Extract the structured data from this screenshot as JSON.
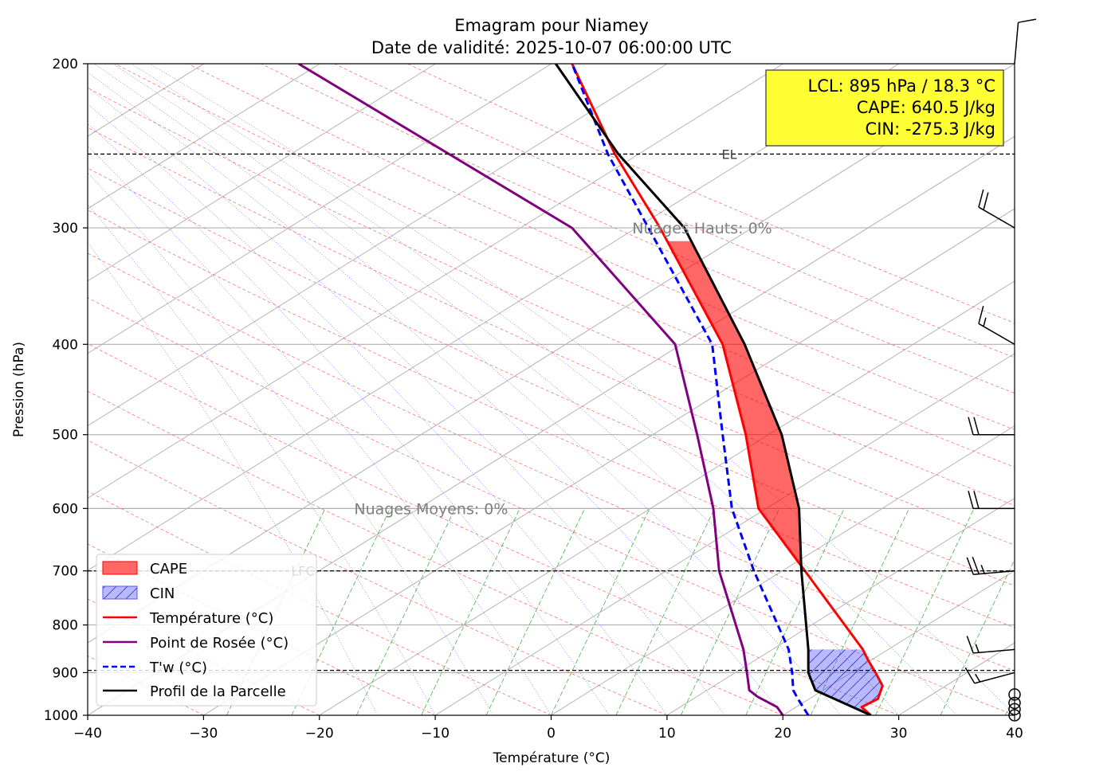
{
  "chart_data": {
    "type": "line",
    "title": "Emagram pour Niamey",
    "subtitle": "Date de validité: 2025-10-07 06:00:00 UTC",
    "xlabel": "Température (°C)",
    "ylabel": "Pression (hPa)",
    "xlim": [
      -40,
      40
    ],
    "ylim": [
      1000,
      200
    ],
    "yscale": "log",
    "xticks": [
      "−40",
      "−30",
      "−20",
      "−10",
      "0",
      "10",
      "20",
      "30",
      "40"
    ],
    "yticks": [
      "200",
      "300",
      "400",
      "500",
      "600",
      "700",
      "800",
      "900",
      "1000"
    ],
    "grid": true,
    "legend_position": "lower-left",
    "series": [
      {
        "name": "Température (°C)",
        "color": "#ff0000",
        "style": "solid",
        "points": [
          [
            27.6,
            1000
          ],
          [
            26.8,
            980
          ],
          [
            28.2,
            960
          ],
          [
            28.6,
            930
          ],
          [
            28.0,
            900
          ],
          [
            27.3,
            870
          ],
          [
            26.9,
            850
          ],
          [
            21.9,
            700
          ],
          [
            17.9,
            600
          ],
          [
            16.8,
            500
          ],
          [
            14.8,
            400
          ],
          [
            9.4,
            300
          ],
          [
            5.5,
            250
          ],
          [
            1.8,
            200
          ]
        ]
      },
      {
        "name": "Point de Rosée (°C)",
        "color": "#800080",
        "style": "solid",
        "points": [
          [
            20.0,
            1000
          ],
          [
            19.5,
            980
          ],
          [
            17.8,
            955
          ],
          [
            17.1,
            940
          ],
          [
            16.9,
            900
          ],
          [
            16.6,
            850
          ],
          [
            14.5,
            700
          ],
          [
            14.0,
            600
          ],
          [
            12.6,
            500
          ],
          [
            10.7,
            400
          ],
          [
            1.8,
            300
          ],
          [
            -21.8,
            200
          ]
        ]
      },
      {
        "name": "T'w (°C)",
        "color": "#0000ff",
        "style": "dashed",
        "points": [
          [
            22.2,
            1000
          ],
          [
            21.3,
            960
          ],
          [
            20.9,
            940
          ],
          [
            20.8,
            900
          ],
          [
            20.5,
            850
          ],
          [
            17.5,
            700
          ],
          [
            15.6,
            600
          ],
          [
            14.8,
            500
          ],
          [
            13.9,
            400
          ],
          [
            8.4,
            300
          ],
          [
            4.9,
            250
          ],
          [
            1.8,
            200
          ]
        ]
      },
      {
        "name": "Profil de la Parcelle",
        "color": "#000000",
        "style": "solid",
        "points": [
          [
            27.6,
            1000
          ],
          [
            22.8,
            940
          ],
          [
            22.2,
            900
          ],
          [
            22.2,
            850
          ],
          [
            21.6,
            700
          ],
          [
            21.4,
            600
          ],
          [
            19.9,
            500
          ],
          [
            16.7,
            400
          ],
          [
            11.5,
            300
          ],
          [
            5.8,
            250
          ],
          [
            0.4,
            200
          ]
        ]
      }
    ],
    "cape": {
      "name": "CAPE",
      "color": "#ff0000",
      "from_hpa": 700,
      "to_hpa": 310
    },
    "cin": {
      "name": "CIN",
      "color": "#0000ff",
      "from_hpa": 1000,
      "to_hpa": 850
    },
    "levels": [
      {
        "label": "EL",
        "pressure": 250
      },
      {
        "label": "LFC",
        "pressure": 700
      },
      {
        "label": "",
        "pressure": 895
      }
    ],
    "annotations": [
      {
        "text": "Nuages Hauts: 0%",
        "pressure": 300,
        "x": 7
      },
      {
        "text": "Nuages Moyens: 0%",
        "pressure": 600,
        "x": -17
      }
    ],
    "info_box": {
      "lines": [
        "LCL: 895 hPa / 18.3 °C",
        "CAPE: 640.5 J/kg",
        "CIN: -275.3 J/kg"
      ],
      "background": "#ffff33"
    },
    "legend": [
      {
        "label": "CAPE",
        "kind": "patch",
        "color": "#ff0000"
      },
      {
        "label": "CIN",
        "kind": "hatch",
        "color": "#0000ff"
      },
      {
        "label": "Température (°C)",
        "kind": "line",
        "color": "#ff0000"
      },
      {
        "label": "Point de Rosée (°C)",
        "kind": "line",
        "color": "#800080"
      },
      {
        "label": "T'w (°C)",
        "kind": "dashed",
        "color": "#0000ff"
      },
      {
        "label": "Profil de la Parcelle",
        "kind": "line",
        "color": "#000000"
      }
    ],
    "wind_barbs": [
      {
        "pressure": 200,
        "direction": 5,
        "speed_kt": 10
      },
      {
        "pressure": 300,
        "direction": 300,
        "speed_kt": 20
      },
      {
        "pressure": 400,
        "direction": 300,
        "speed_kt": 15
      },
      {
        "pressure": 500,
        "direction": 270,
        "speed_kt": 20
      },
      {
        "pressure": 600,
        "direction": 270,
        "speed_kt": 20
      },
      {
        "pressure": 700,
        "direction": 265,
        "speed_kt": 25
      },
      {
        "pressure": 850,
        "direction": 265,
        "speed_kt": 15
      },
      {
        "pressure": 900,
        "direction": 255,
        "speed_kt": 15
      },
      {
        "pressure": 950,
        "direction": 0,
        "speed_kt": 0
      },
      {
        "pressure": 970,
        "direction": 0,
        "speed_kt": 0
      },
      {
        "pressure": 985,
        "direction": 0,
        "speed_kt": 0
      },
      {
        "pressure": 1000,
        "direction": 0,
        "speed_kt": 0
      }
    ]
  }
}
